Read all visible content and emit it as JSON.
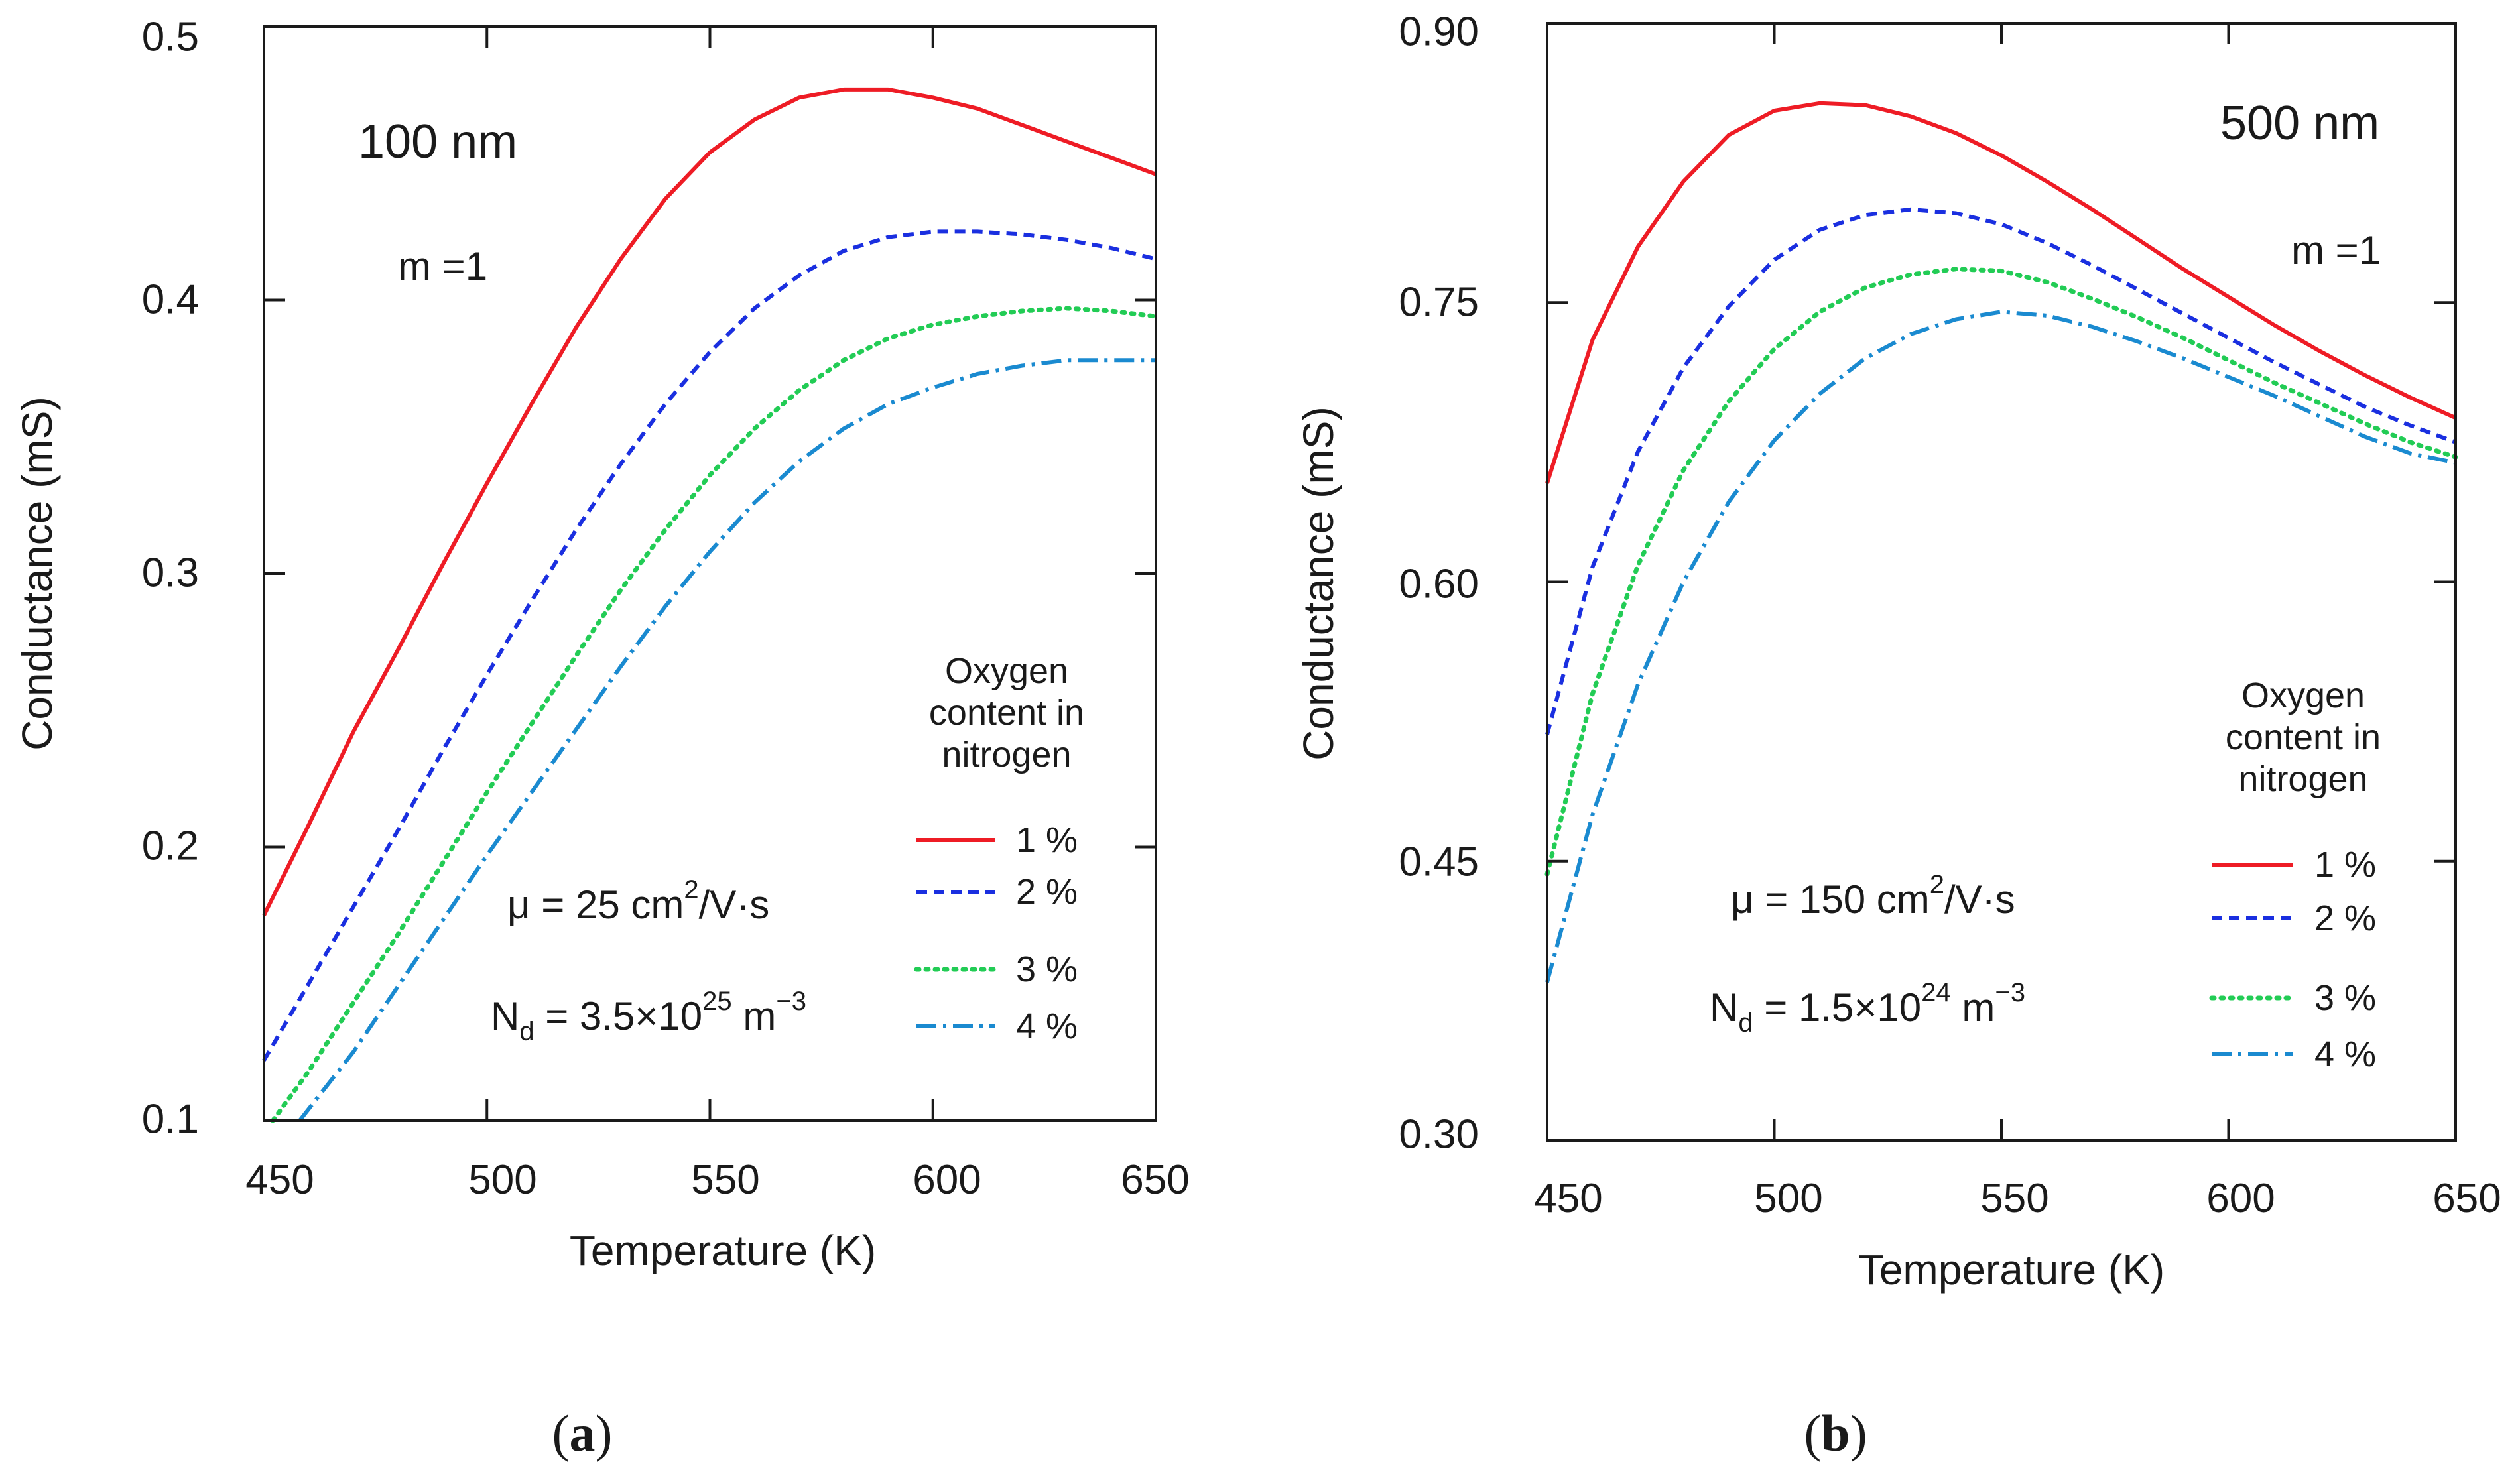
{
  "chart_data": [
    {
      "type": "line",
      "panel_label": {
        "open": "(",
        "letter": "a",
        "close": ")"
      },
      "xlabel": "Temperature (K)",
      "ylabel": "Conductance (mS)",
      "xlim": [
        450,
        650
      ],
      "ylim": [
        0.1,
        0.5
      ],
      "xticks": [
        450,
        500,
        550,
        600,
        650
      ],
      "xtick_labels": [
        "450",
        "500",
        "550",
        "600",
        "650"
      ],
      "yticks": [
        0.1,
        0.2,
        0.3,
        0.4,
        0.5
      ],
      "ytick_labels": [
        "0.1",
        "0.2",
        "0.3",
        "0.4",
        "0.5"
      ],
      "annotations": {
        "thickness": "100 nm",
        "m": "m =1",
        "mu_prefix": "μ = 25 cm",
        "mu_sup": "2",
        "mu_suffix": "/V·s",
        "nd_base": "N",
        "nd_sub": "d",
        "nd_value": " = 3.5×10",
        "nd_sup1": "25",
        "nd_unit": " m",
        "nd_sup2": "−3"
      },
      "legend": {
        "title": [
          "Oxygen",
          "content in",
          "nitrogen"
        ],
        "entries": [
          "1 %",
          "2 %",
          "3 %",
          "4 %"
        ]
      },
      "series": [
        {
          "name": "1 %",
          "color": "#ee1c25",
          "style": "solid",
          "x": [
            450,
            460,
            470,
            480,
            490,
            500,
            510,
            520,
            530,
            540,
            550,
            560,
            570,
            580,
            590,
            600,
            610,
            620,
            630,
            640,
            650
          ],
          "y": [
            0.175,
            0.208,
            0.242,
            0.272,
            0.303,
            0.333,
            0.362,
            0.39,
            0.415,
            0.437,
            0.454,
            0.466,
            0.474,
            0.477,
            0.477,
            0.474,
            0.47,
            0.464,
            0.458,
            0.452,
            0.446
          ]
        },
        {
          "name": "2 %",
          "color": "#1a2fe0",
          "style": "dashed",
          "x": [
            450,
            460,
            470,
            480,
            490,
            500,
            510,
            520,
            530,
            540,
            550,
            560,
            570,
            580,
            590,
            600,
            610,
            620,
            630,
            640,
            650
          ],
          "y": [
            0.122,
            0.15,
            0.178,
            0.206,
            0.235,
            0.263,
            0.29,
            0.316,
            0.34,
            0.362,
            0.381,
            0.397,
            0.409,
            0.418,
            0.423,
            0.425,
            0.425,
            0.424,
            0.422,
            0.419,
            0.415
          ]
        },
        {
          "name": "3 %",
          "color": "#22cc55",
          "style": "dotted",
          "x": [
            452,
            460,
            470,
            480,
            490,
            500,
            510,
            520,
            530,
            540,
            550,
            560,
            570,
            580,
            590,
            600,
            610,
            620,
            630,
            640,
            650
          ],
          "y": [
            0.1,
            0.118,
            0.143,
            0.168,
            0.194,
            0.22,
            0.245,
            0.27,
            0.294,
            0.316,
            0.336,
            0.353,
            0.367,
            0.378,
            0.386,
            0.391,
            0.394,
            0.396,
            0.397,
            0.396,
            0.394
          ]
        },
        {
          "name": "4 %",
          "color": "#1a8ad0",
          "style": "dashdot",
          "x": [
            458,
            470,
            480,
            490,
            500,
            510,
            520,
            530,
            540,
            550,
            560,
            570,
            580,
            590,
            600,
            610,
            620,
            630,
            640,
            650
          ],
          "y": [
            0.1,
            0.125,
            0.149,
            0.173,
            0.197,
            0.22,
            0.243,
            0.266,
            0.288,
            0.308,
            0.326,
            0.341,
            0.353,
            0.362,
            0.368,
            0.373,
            0.376,
            0.378,
            0.378,
            0.378
          ]
        }
      ]
    },
    {
      "type": "line",
      "panel_label": {
        "open": "(",
        "letter": "b",
        "close": ")"
      },
      "xlabel": "Temperature (K)",
      "ylabel": "Conductance (mS)",
      "xlim": [
        450,
        650
      ],
      "ylim": [
        0.3,
        0.9
      ],
      "xticks": [
        450,
        500,
        550,
        600,
        650
      ],
      "xtick_labels": [
        "450",
        "500",
        "550",
        "600",
        "650"
      ],
      "yticks": [
        0.3,
        0.45,
        0.6,
        0.75,
        0.9
      ],
      "ytick_labels": [
        "0.30",
        "0.45",
        "0.60",
        "0.75",
        "0.90"
      ],
      "annotations": {
        "thickness": "500 nm",
        "m": "m =1",
        "mu_prefix": "μ = 150 cm",
        "mu_sup": "2",
        "mu_suffix": "/V·s",
        "nd_base": "N",
        "nd_sub": "d",
        "nd_value": " = 1.5×10",
        "nd_sup1": "24",
        "nd_unit": " m",
        "nd_sup2": "−3"
      },
      "legend": {
        "title": [
          "Oxygen",
          "content in",
          "nitrogen"
        ],
        "entries": [
          "1 %",
          "2 %",
          "3 %",
          "4 %"
        ]
      },
      "series": [
        {
          "name": "1 %",
          "color": "#ee1c25",
          "style": "solid",
          "x": [
            450,
            460,
            470,
            480,
            490,
            500,
            510,
            520,
            530,
            540,
            550,
            560,
            570,
            580,
            590,
            600,
            610,
            620,
            630,
            640,
            650
          ],
          "y": [
            0.653,
            0.73,
            0.78,
            0.815,
            0.84,
            0.853,
            0.857,
            0.856,
            0.85,
            0.841,
            0.829,
            0.815,
            0.8,
            0.784,
            0.768,
            0.753,
            0.738,
            0.724,
            0.711,
            0.699,
            0.688
          ]
        },
        {
          "name": "2 %",
          "color": "#1a2fe0",
          "style": "dashed",
          "x": [
            450,
            460,
            470,
            480,
            490,
            500,
            510,
            520,
            530,
            540,
            550,
            560,
            570,
            580,
            590,
            600,
            610,
            620,
            630,
            640,
            650
          ],
          "y": [
            0.518,
            0.608,
            0.67,
            0.715,
            0.748,
            0.773,
            0.789,
            0.797,
            0.8,
            0.798,
            0.792,
            0.782,
            0.77,
            0.757,
            0.744,
            0.731,
            0.718,
            0.706,
            0.694,
            0.684,
            0.675
          ]
        },
        {
          "name": "3 %",
          "color": "#22cc55",
          "style": "dotted",
          "x": [
            450,
            460,
            470,
            480,
            490,
            500,
            510,
            520,
            530,
            540,
            550,
            560,
            570,
            580,
            590,
            600,
            610,
            620,
            630,
            640,
            650
          ],
          "y": [
            0.443,
            0.54,
            0.609,
            0.66,
            0.697,
            0.725,
            0.745,
            0.758,
            0.765,
            0.768,
            0.767,
            0.761,
            0.752,
            0.742,
            0.731,
            0.719,
            0.707,
            0.696,
            0.685,
            0.675,
            0.667
          ]
        },
        {
          "name": "4 %",
          "color": "#1a8ad0",
          "style": "dashdot",
          "x": [
            450,
            460,
            470,
            480,
            490,
            500,
            510,
            520,
            530,
            540,
            550,
            560,
            570,
            580,
            590,
            600,
            610,
            620,
            630,
            640,
            650
          ],
          "y": [
            0.385,
            0.475,
            0.545,
            0.6,
            0.643,
            0.676,
            0.701,
            0.72,
            0.733,
            0.741,
            0.745,
            0.743,
            0.737,
            0.729,
            0.72,
            0.71,
            0.7,
            0.689,
            0.678,
            0.669,
            0.664
          ]
        }
      ]
    }
  ]
}
